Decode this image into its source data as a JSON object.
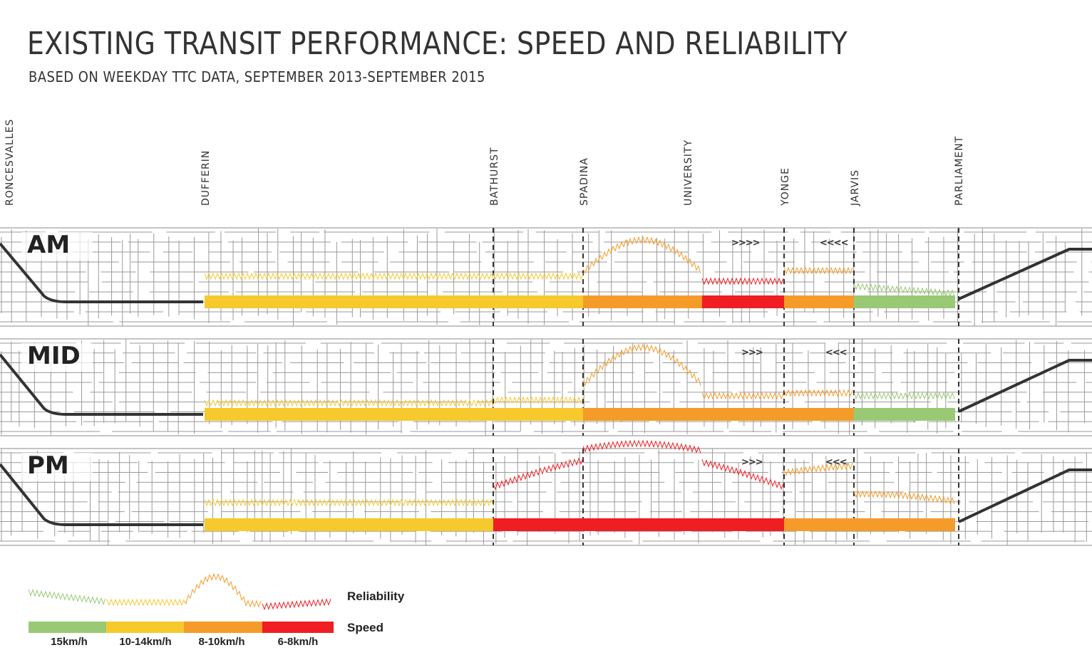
{
  "title": "EXISTING TRANSIT PERFORMANCE: SPEED AND RELIABILITY",
  "subtitle": "BASED ON WEEKDAY TTC DATA, SEPTEMBER 2013-SEPTEMBER 2015",
  "streets": [
    "RONCESVALLES",
    "DUFFERIN",
    "BATHURST",
    "SPADINA",
    "UNIVERSITY",
    "YONGE",
    "JARVIS",
    "PARLIAMENT"
  ],
  "periods": [
    {
      "label": "AM",
      "arrows_east": ">>>>",
      "arrows_west": "<<<<",
      "speed": [
        "yellow",
        "yellow",
        "orange",
        "red",
        "orange",
        "green"
      ],
      "reliability": [
        "yellow",
        "yellow",
        "orange",
        "red",
        "orange",
        "green"
      ]
    },
    {
      "label": "MID",
      "arrows_east": ">>>",
      "arrows_west": "<<<",
      "speed": [
        "yellow",
        "yellow",
        "orange",
        "orange",
        "orange",
        "green"
      ],
      "reliability": [
        "yellow",
        "yellow",
        "orange",
        "orange",
        "orange",
        "green"
      ]
    },
    {
      "label": "PM",
      "arrows_east": ">>>",
      "arrows_west": "<<<",
      "speed": [
        "yellow",
        "red",
        "red",
        "red",
        "orange",
        "orange"
      ],
      "reliability": [
        "yellow",
        "red",
        "red",
        "red",
        "orange",
        "orange"
      ]
    }
  ],
  "segments": [
    "Dufferin–Bathurst",
    "Bathurst–Spadina",
    "Spadina–University",
    "University–Yonge",
    "Yonge–Jarvis",
    "Jarvis–Parliament"
  ],
  "legend": {
    "reliability_label": "Reliability",
    "speed_label": "Speed",
    "classes": [
      {
        "label": "15km/h",
        "color": "#99c975"
      },
      {
        "label": "10-14km/h",
        "color": "#f6c92d"
      },
      {
        "label": "8-10km/h",
        "color": "#f59b2a"
      },
      {
        "label": "6-8km/h",
        "color": "#f01d23"
      }
    ]
  },
  "colors": {
    "green": "#99c975",
    "yellow": "#f6c92d",
    "orange": "#f59b2a",
    "red": "#f01d23",
    "route": "#333333",
    "map": "#9a9a9a"
  }
}
